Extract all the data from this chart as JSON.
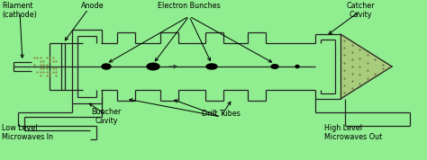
{
  "bg_color": "#90EE90",
  "line_color": "#222222",
  "labels": {
    "filament": "Filament\n(cathode)",
    "anode": "Anode",
    "electron_bunches": "Electron Bunches",
    "buncher_cavity": "Buncher\nCavity",
    "drift_tubes": "Drift Tubes",
    "catcher_cavity": "Catcher\nCavity",
    "low_level": "Low Level\nMicrowaves In",
    "high_level": "High Level\nMicrowaves Out"
  },
  "figsize": [
    4.74,
    1.78
  ],
  "dpi": 100
}
